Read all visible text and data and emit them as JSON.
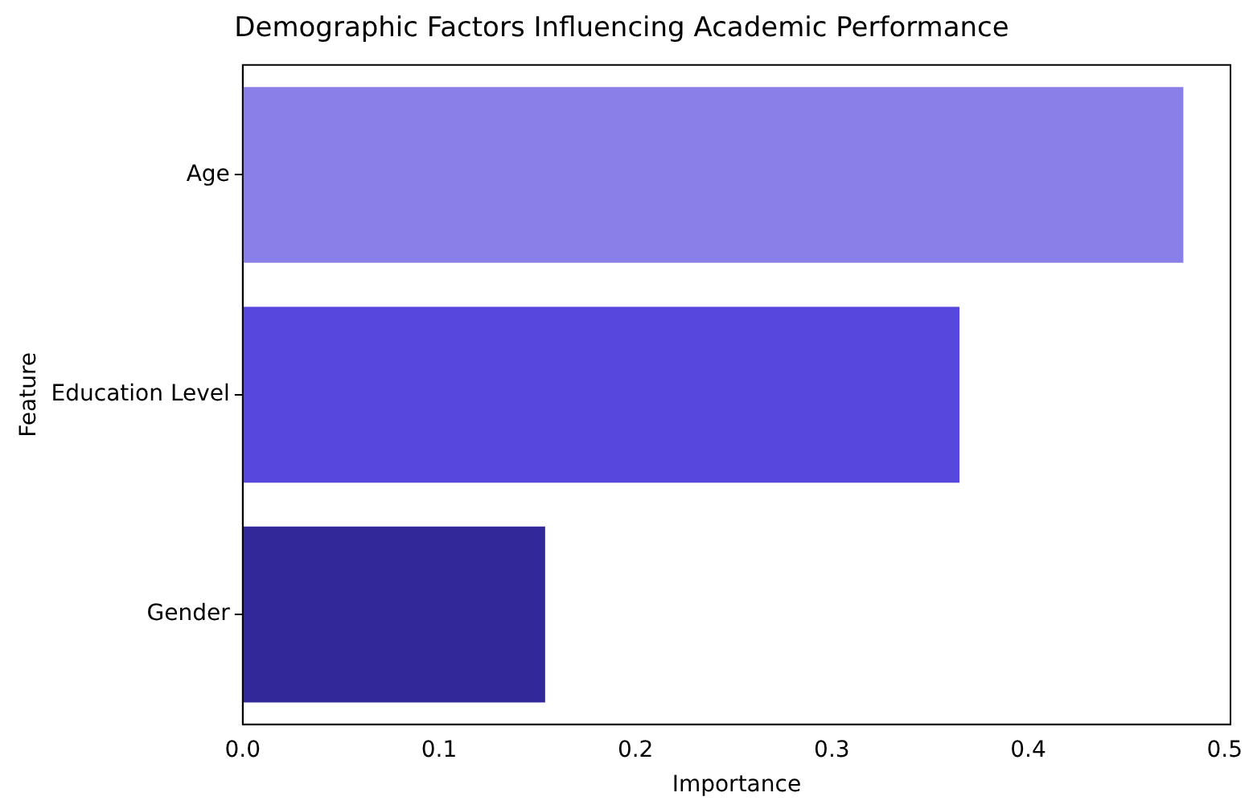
{
  "chart_data": {
    "type": "bar",
    "orientation": "horizontal",
    "title": "Demographic Factors Influencing Academic Performance",
    "xlabel": "Importance",
    "ylabel": "Feature",
    "categories": [
      "Age",
      "Education Level",
      "Gender"
    ],
    "values": [
      0.479,
      0.365,
      0.154
    ],
    "colors": [
      "#8a7fe8",
      "#5847dc",
      "#33289a"
    ],
    "xlim": [
      0,
      0.503
    ],
    "xticks": [
      {
        "value": 0,
        "label": "0.0"
      },
      {
        "value": 0.1,
        "label": "0.1"
      },
      {
        "value": 0.2,
        "label": "0.2"
      },
      {
        "value": 0.3,
        "label": "0.3"
      },
      {
        "value": 0.4,
        "label": "0.4"
      },
      {
        "value": 0.5,
        "label": "0.5"
      }
    ],
    "grid": false,
    "legend": false
  }
}
